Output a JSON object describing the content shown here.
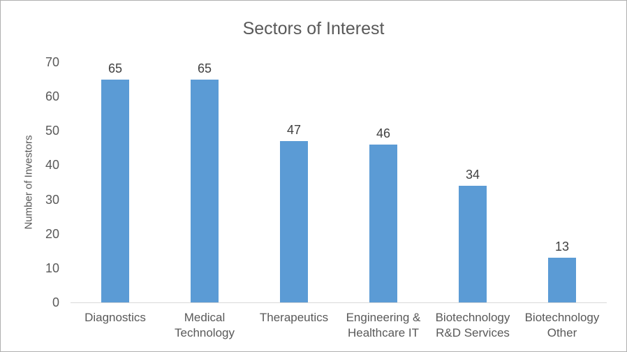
{
  "chart_data": {
    "type": "bar",
    "title": "Sectors of Interest",
    "xlabel": "",
    "ylabel": "Number of Investors",
    "categories": [
      "Diagnostics",
      "Medical Technology",
      "Therapeutics",
      "Engineering & Healthcare IT",
      "Biotechnology R&D Services",
      "Biotechnology Other"
    ],
    "values": [
      65,
      65,
      47,
      46,
      34,
      13
    ],
    "data_labels": [
      "65",
      "65",
      "47",
      "46",
      "34",
      "13"
    ],
    "ylim": [
      0,
      70
    ],
    "yticks": [
      "0",
      "10",
      "20",
      "30",
      "40",
      "50",
      "60",
      "70"
    ],
    "grid": false,
    "legend_position": "none",
    "colors": {
      "bar": "#5B9BD5",
      "title_text": "#595959",
      "axis_text": "#595959",
      "data_label_text": "#404040",
      "axis_line": "#D9D9D9",
      "chart_border": "#AFAFAF",
      "background": "#FFFFFF"
    }
  }
}
